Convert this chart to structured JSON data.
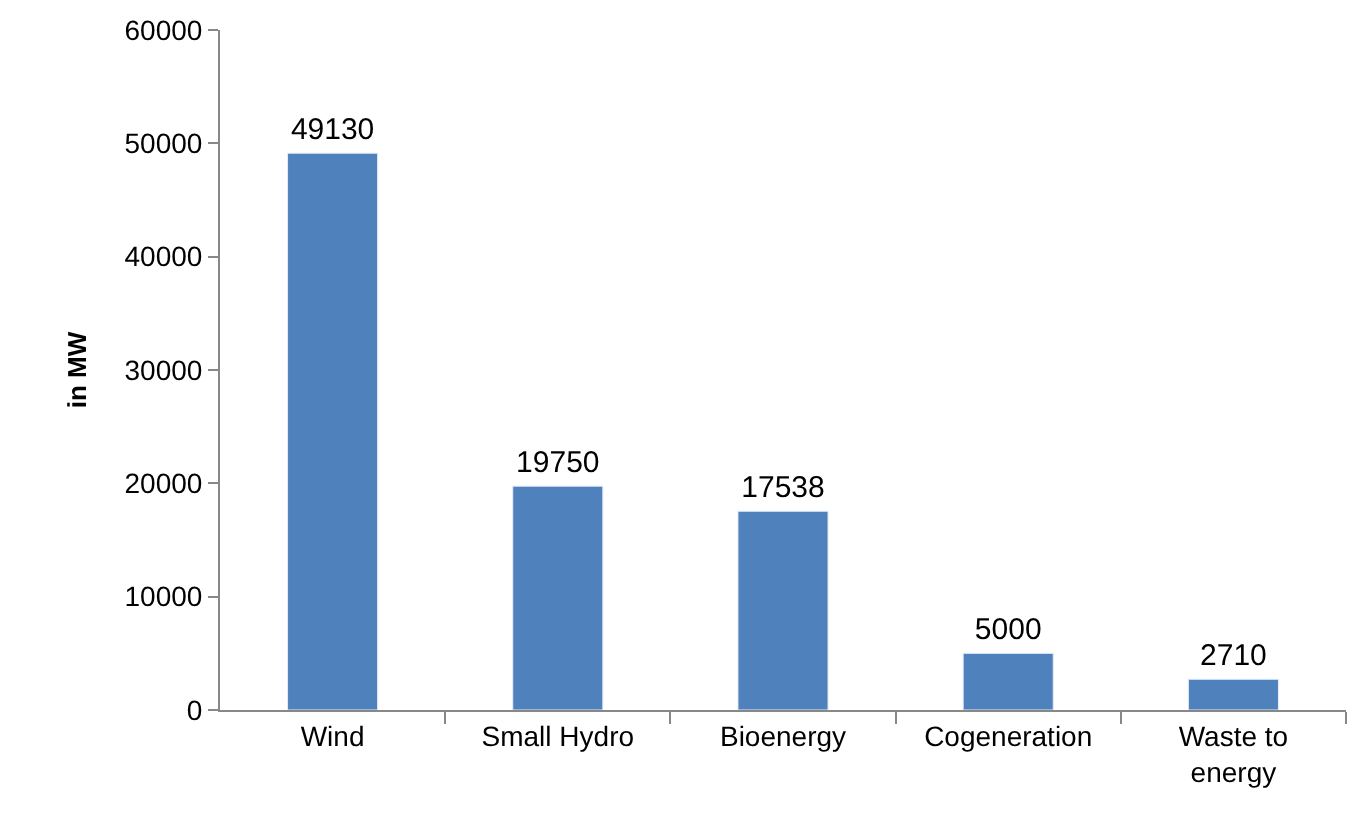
{
  "chart_data": {
    "type": "bar",
    "ylabel": "in MW",
    "categories": [
      "Wind",
      "Small Hydro",
      "Bioenergy",
      "Cogeneration",
      "Waste to energy"
    ],
    "values": [
      49130,
      19750,
      17538,
      5000,
      2710
    ],
    "color": "#4f81bd",
    "ylim": [
      0,
      60000
    ],
    "yticks": [
      0,
      10000,
      20000,
      30000,
      40000,
      50000,
      60000
    ],
    "data_labels": true
  }
}
